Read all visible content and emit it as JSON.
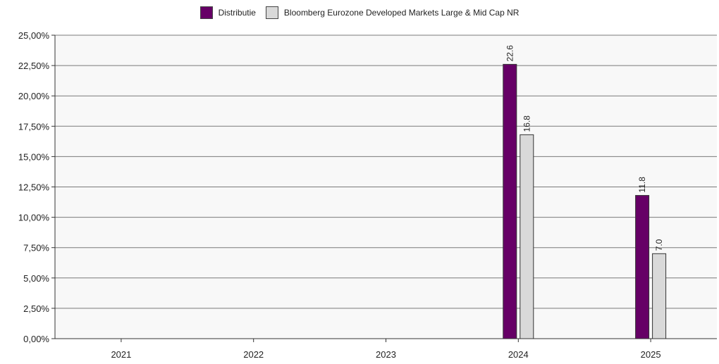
{
  "chart_data": {
    "type": "bar",
    "categories": [
      "2021",
      "2022",
      "2023",
      "2024",
      "2025"
    ],
    "series": [
      {
        "name": "Distributie",
        "color": "#660066",
        "values": [
          0,
          0,
          0,
          22.6,
          11.8
        ],
        "labels": [
          "",
          "",
          "",
          "22.6",
          "11.8"
        ]
      },
      {
        "name": "Bloomberg Eurozone Developed Markets Large & Mid Cap NR",
        "color": "#d9d9d9",
        "values": [
          0,
          0,
          0,
          16.8,
          7.0
        ],
        "labels": [
          "",
          "",
          "",
          "16.8",
          "7.0"
        ]
      }
    ],
    "ylim": [
      0,
      25
    ],
    "yticks": [
      0,
      2.5,
      5,
      7.5,
      10,
      12.5,
      15,
      17.5,
      20,
      22.5,
      25
    ],
    "ytick_labels": [
      "0,00%",
      "2,50%",
      "5,00%",
      "7,50%",
      "10,00%",
      "12,50%",
      "15,00%",
      "17,50%",
      "20,00%",
      "22,50%",
      "25,00%"
    ],
    "grid": true,
    "legend_position": "top-center",
    "plot_background": "#f8f8f8"
  }
}
